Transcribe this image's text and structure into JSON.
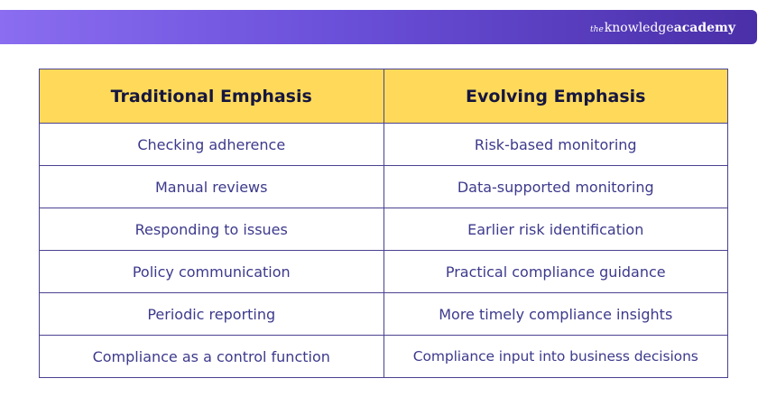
{
  "brand": {
    "the": "the",
    "knowledge": "knowledge",
    "academy": "academy"
  },
  "table": {
    "headers": [
      "Traditional Emphasis",
      "Evolving Emphasis"
    ],
    "rows": [
      [
        "Checking adherence",
        "Risk-based monitoring"
      ],
      [
        "Manual reviews",
        "Data-supported monitoring"
      ],
      [
        "Responding to issues",
        "Earlier risk identification"
      ],
      [
        "Policy communication",
        "Practical compliance guidance"
      ],
      [
        "Periodic reporting",
        "More timely compliance insights"
      ],
      [
        "Compliance as a control function",
        "Compliance input into business decisions"
      ]
    ]
  },
  "colors": {
    "banner_start": "#8a6df0",
    "banner_end": "#4a2fa8",
    "header_fill": "#ffda5a",
    "header_text": "#16163f",
    "cell_text": "#3d3a8c",
    "border": "#4a4290"
  }
}
